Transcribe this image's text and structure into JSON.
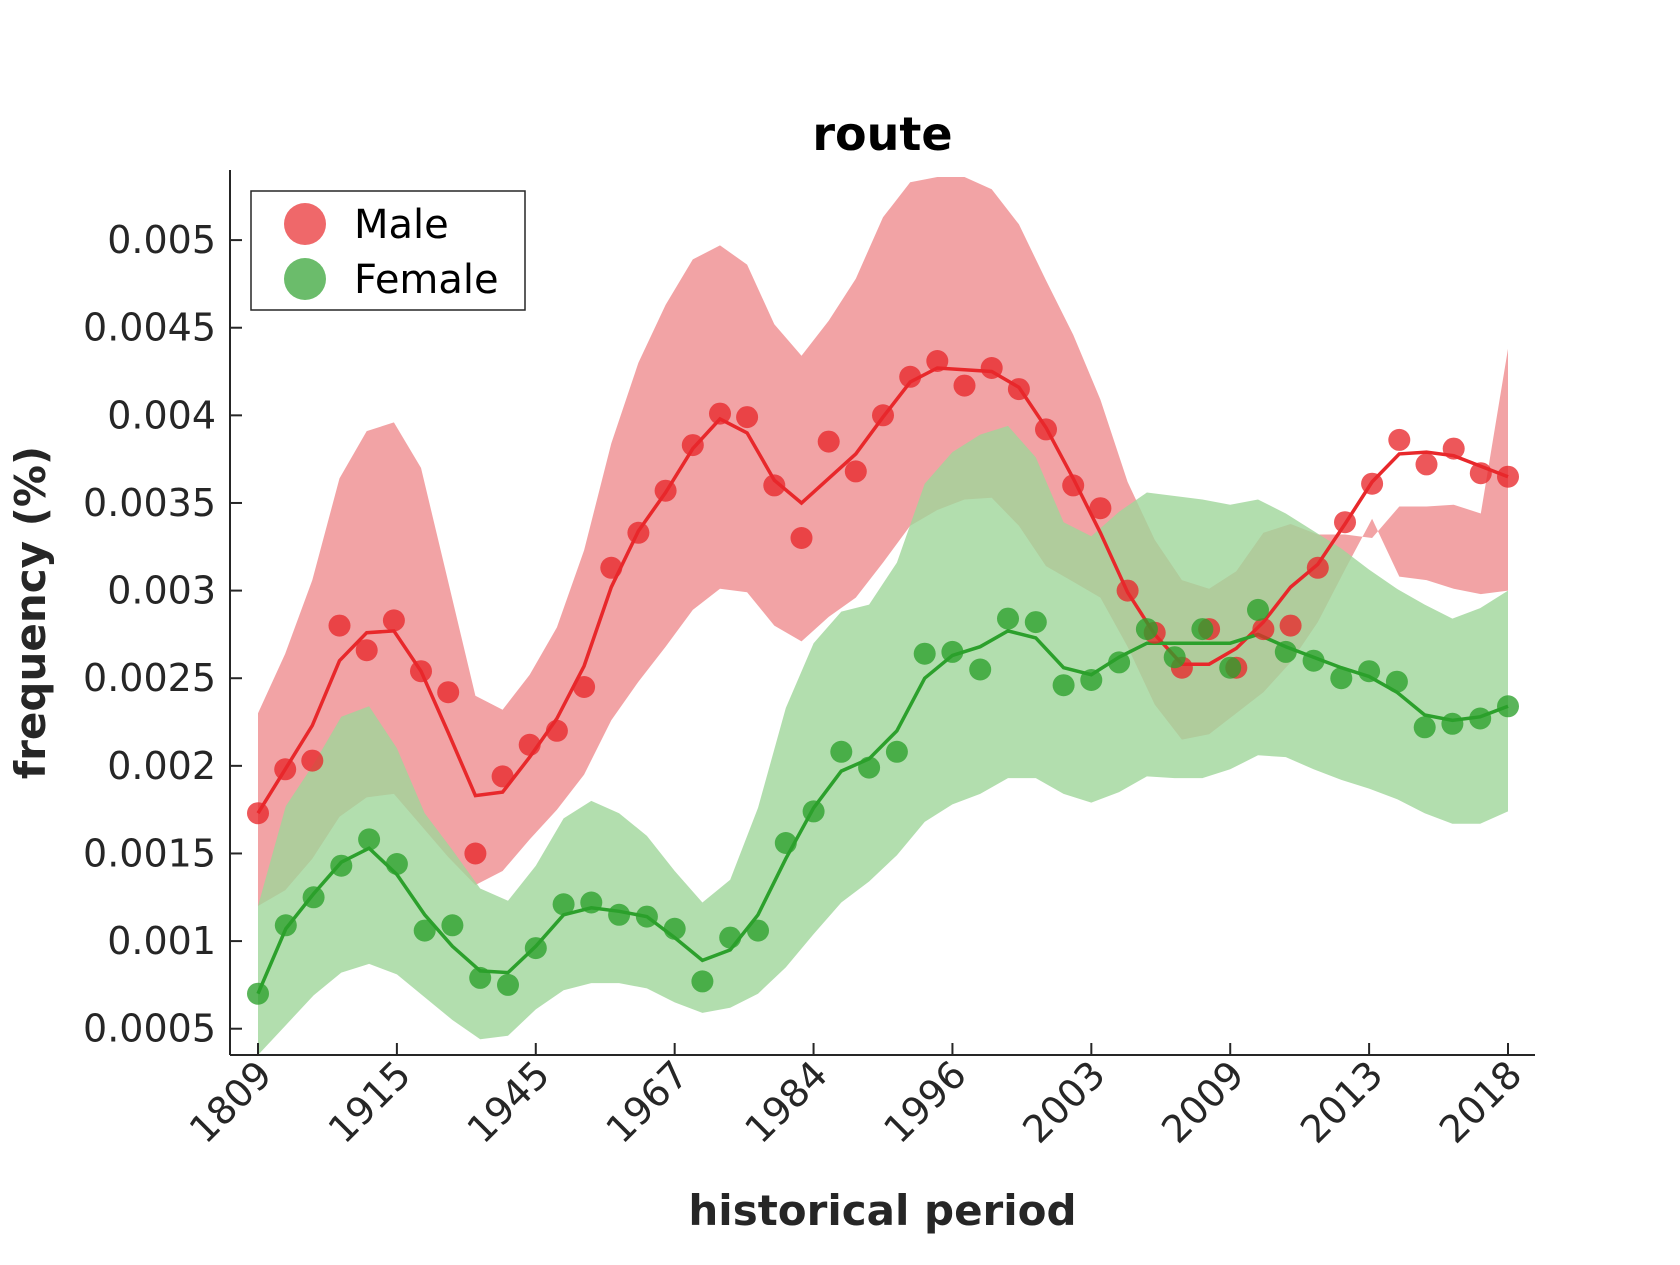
{
  "chart_data": {
    "type": "line",
    "title": "route",
    "xlabel": "historical period",
    "ylabel": "frequency (%)",
    "x_tick_labels": [
      "1809",
      "1915",
      "1945",
      "1967",
      "1984",
      "1996",
      "2003",
      "2009",
      "2013",
      "2018"
    ],
    "y_ticks": [
      0.0005,
      0.001,
      0.0015,
      0.002,
      0.0025,
      0.003,
      0.0035,
      0.004,
      0.0045,
      0.005
    ],
    "y_tick_labels": [
      "0.0005",
      "0.001",
      "0.0015",
      "0.002",
      "0.0025",
      "0.003",
      "0.0035",
      "0.004",
      "0.0045",
      "0.005"
    ],
    "ylim": [
      0.00035,
      0.0054
    ],
    "legend_position": "top-left",
    "grid": false,
    "series": [
      {
        "name": "Male",
        "color": "#e8282b",
        "band_color": "#ef8c8f",
        "points": [
          0.00173,
          0.00198,
          0.00203,
          0.0028,
          0.00266,
          0.00283,
          0.00254,
          0.00242,
          0.0015,
          0.00194,
          0.00212,
          0.0022,
          0.00245,
          0.00313,
          0.00333,
          0.00357,
          0.00383,
          0.00401,
          0.00399,
          0.0036,
          0.0033,
          0.00385,
          0.00368,
          0.004,
          0.00422,
          0.00431,
          0.00417,
          0.00427,
          0.00415,
          0.00392,
          0.0036,
          0.00347,
          0.003,
          0.00276,
          0.00256,
          0.00278,
          0.00256,
          0.00278,
          0.0028,
          0.00313,
          0.00339,
          0.00361,
          0.00386,
          0.00372,
          0.00381,
          0.00367,
          0.00365
        ],
        "trend": [
          0.00173,
          0.00198,
          0.00223,
          0.0026,
          0.00276,
          0.00277,
          0.00254,
          0.00219,
          0.00183,
          0.00185,
          0.00205,
          0.00227,
          0.00257,
          0.00302,
          0.00334,
          0.00356,
          0.00381,
          0.00398,
          0.0039,
          0.00363,
          0.0035,
          0.00364,
          0.00378,
          0.00399,
          0.00419,
          0.00427,
          0.00426,
          0.00425,
          0.00416,
          0.00393,
          0.00364,
          0.00333,
          0.00299,
          0.00275,
          0.00258,
          0.00258,
          0.00267,
          0.00282,
          0.00302,
          0.00315,
          0.00338,
          0.00362,
          0.00378,
          0.00379,
          0.00377,
          0.00371,
          0.00365
        ],
        "band_upper": [
          0.0023,
          0.00264,
          0.00306,
          0.00364,
          0.00391,
          0.00396,
          0.0037,
          0.00305,
          0.0024,
          0.00232,
          0.00252,
          0.00279,
          0.00323,
          0.00384,
          0.0043,
          0.00463,
          0.00489,
          0.00497,
          0.00486,
          0.00452,
          0.00434,
          0.00454,
          0.00478,
          0.00513,
          0.00533,
          0.00536,
          0.00536,
          0.00529,
          0.00509,
          0.00477,
          0.00446,
          0.00409,
          0.00362,
          0.00329,
          0.00306,
          0.00301,
          0.00311,
          0.00333,
          0.00338,
          0.00332,
          0.00332,
          0.0033,
          0.00348,
          0.00348,
          0.00349,
          0.00344,
          0.00438
        ],
        "band_lower": [
          0.0012,
          0.00129,
          0.00147,
          0.00171,
          0.00182,
          0.00184,
          0.00166,
          0.00148,
          0.00132,
          0.0014,
          0.00158,
          0.00175,
          0.00195,
          0.00226,
          0.00248,
          0.00268,
          0.00289,
          0.00301,
          0.00299,
          0.0028,
          0.00271,
          0.00285,
          0.00296,
          0.00316,
          0.00337,
          0.00346,
          0.00352,
          0.00353,
          0.00337,
          0.00314,
          0.00305,
          0.00296,
          0.00268,
          0.00235,
          0.00215,
          0.00218,
          0.0023,
          0.00242,
          0.00259,
          0.00282,
          0.00312,
          0.00341,
          0.00308,
          0.00306,
          0.00301,
          0.00298,
          0.003
        ]
      },
      {
        "name": "Female",
        "color": "#2ca02c",
        "band_color": "#9fd69a",
        "points": [
          0.0007,
          0.00109,
          0.00125,
          0.00143,
          0.00158,
          0.00144,
          0.00106,
          0.00109,
          0.00079,
          0.00075,
          0.00096,
          0.00121,
          0.00122,
          0.00115,
          0.00114,
          0.00107,
          0.00077,
          0.00102,
          0.00106,
          0.00156,
          0.00174,
          0.00208,
          0.00199,
          0.00208,
          0.00264,
          0.00265,
          0.00255,
          0.00284,
          0.00282,
          0.00246,
          0.00249,
          0.00259,
          0.00278,
          0.00262,
          0.00278,
          0.00256,
          0.00289,
          0.00265,
          0.0026,
          0.0025,
          0.00254,
          0.00248,
          0.00222,
          0.00224,
          0.00227,
          0.00234
        ],
        "trend": [
          0.0007,
          0.00107,
          0.00127,
          0.00145,
          0.00153,
          0.00138,
          0.00115,
          0.00097,
          0.00083,
          0.00082,
          0.00097,
          0.00115,
          0.00119,
          0.00117,
          0.00114,
          0.00102,
          0.00089,
          0.00095,
          0.00115,
          0.00147,
          0.00176,
          0.00197,
          0.00204,
          0.0022,
          0.0025,
          0.00263,
          0.00268,
          0.00277,
          0.00273,
          0.00256,
          0.00252,
          0.00262,
          0.0027,
          0.0027,
          0.0027,
          0.0027,
          0.00275,
          0.00268,
          0.00262,
          0.00256,
          0.00251,
          0.00242,
          0.00229,
          0.00226,
          0.00228,
          0.00234
        ],
        "band_upper": [
          0.0012,
          0.00177,
          0.00201,
          0.00228,
          0.00234,
          0.0021,
          0.00173,
          0.00152,
          0.0013,
          0.00123,
          0.00143,
          0.0017,
          0.0018,
          0.00173,
          0.0016,
          0.0014,
          0.00122,
          0.00135,
          0.00176,
          0.00233,
          0.0027,
          0.00288,
          0.00292,
          0.00316,
          0.00361,
          0.00379,
          0.00389,
          0.00394,
          0.00376,
          0.00339,
          0.00331,
          0.00345,
          0.00356,
          0.00354,
          0.00352,
          0.00349,
          0.00352,
          0.00344,
          0.00334,
          0.00324,
          0.00312,
          0.00301,
          0.00292,
          0.00284,
          0.0029,
          0.003
        ],
        "band_lower": [
          0.00035,
          0.00052,
          0.00069,
          0.00082,
          0.00087,
          0.00081,
          0.00068,
          0.00055,
          0.00044,
          0.00046,
          0.00061,
          0.00072,
          0.00076,
          0.00076,
          0.00073,
          0.00065,
          0.00059,
          0.00062,
          0.0007,
          0.00085,
          0.00104,
          0.00122,
          0.00134,
          0.00149,
          0.00168,
          0.00178,
          0.00184,
          0.00193,
          0.00193,
          0.00184,
          0.00179,
          0.00185,
          0.00194,
          0.00193,
          0.00193,
          0.00198,
          0.00206,
          0.00205,
          0.00198,
          0.00192,
          0.00187,
          0.00181,
          0.00173,
          0.00167,
          0.00167,
          0.00174
        ]
      }
    ]
  }
}
